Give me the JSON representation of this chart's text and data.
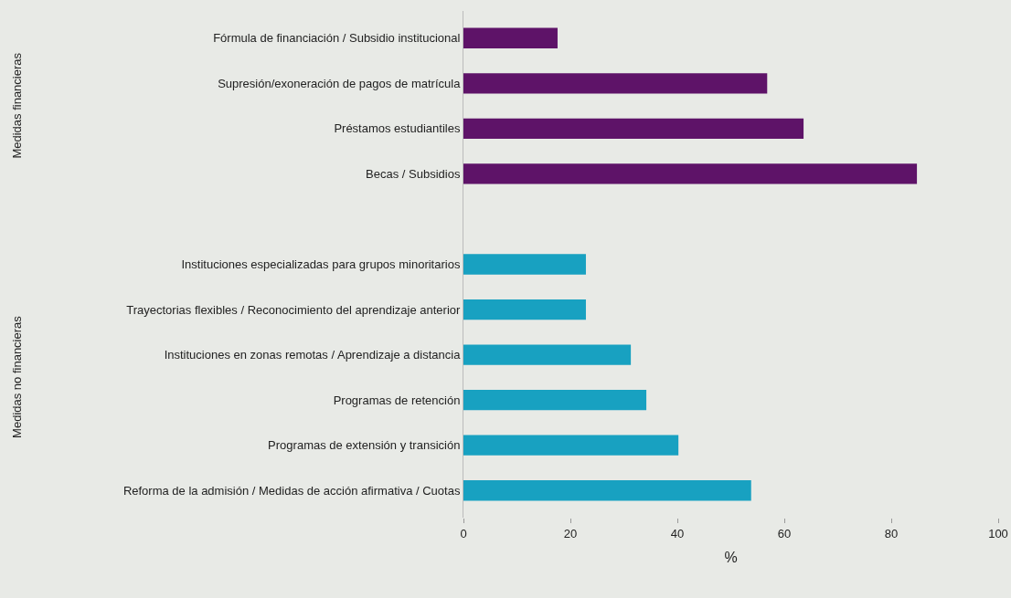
{
  "chart_data": {
    "type": "bar",
    "orientation": "horizontal",
    "categories": [
      "Fórmula de financiación / Subsidio institucional",
      "Supresión/exoneración de pagos de matrícula",
      "Préstamos estudiantiles",
      "Becas / Subsidios",
      null,
      "Instituciones especializadas para grupos minoritarios",
      "Trayectorias flexibles / Reconocimiento del aprendizaje anterior",
      "Instituciones en zonas remotas / Aprendizaje a distancia",
      "Programas de retención",
      "Programas de extensión y transición",
      "Reforma de la admisión / Medidas de acción afirmativa / Cuotas"
    ],
    "values": [
      17.6,
      56.8,
      63.6,
      84.8,
      null,
      22.9,
      22.9,
      31.3,
      34.2,
      40.2,
      53.8
    ],
    "colors": [
      "#5e1368",
      "#5e1368",
      "#5e1368",
      "#5e1368",
      null,
      "#18a1c1",
      "#18a1c1",
      "#18a1c1",
      "#18a1c1",
      "#18a1c1",
      "#18a1c1"
    ],
    "xlim": [
      0,
      100
    ],
    "xticks": [
      0,
      20,
      40,
      60,
      80,
      100
    ],
    "xlabel": "%",
    "grid": false,
    "legend": false,
    "annotations": [
      "Medidas financieras",
      "Medidas no financieras"
    ]
  }
}
